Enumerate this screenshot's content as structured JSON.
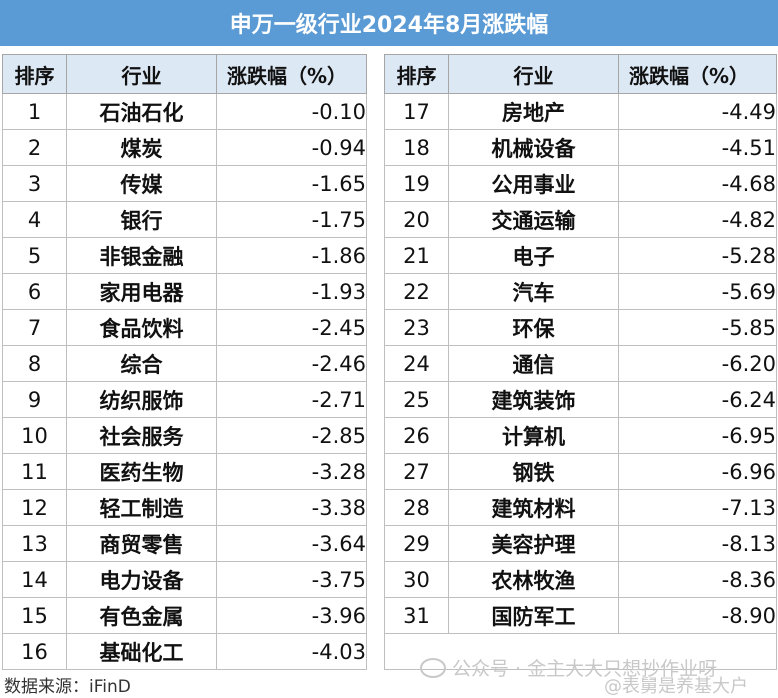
{
  "title": "申万一级行业2024年8月涨跌幅",
  "headers": {
    "rank": "排序",
    "industry": "行业",
    "change": "涨跌幅（%）"
  },
  "left_rows": [
    {
      "rank": "1",
      "industry": "石油石化",
      "change": "-0.10"
    },
    {
      "rank": "2",
      "industry": "煤炭",
      "change": "-0.94"
    },
    {
      "rank": "3",
      "industry": "传媒",
      "change": "-1.65"
    },
    {
      "rank": "4",
      "industry": "银行",
      "change": "-1.75"
    },
    {
      "rank": "5",
      "industry": "非银金融",
      "change": "-1.86"
    },
    {
      "rank": "6",
      "industry": "家用电器",
      "change": "-1.93"
    },
    {
      "rank": "7",
      "industry": "食品饮料",
      "change": "-2.45"
    },
    {
      "rank": "8",
      "industry": "综合",
      "change": "-2.46"
    },
    {
      "rank": "9",
      "industry": "纺织服饰",
      "change": "-2.71"
    },
    {
      "rank": "10",
      "industry": "社会服务",
      "change": "-2.85"
    },
    {
      "rank": "11",
      "industry": "医药生物",
      "change": "-3.28"
    },
    {
      "rank": "12",
      "industry": "轻工制造",
      "change": "-3.38"
    },
    {
      "rank": "13",
      "industry": "商贸零售",
      "change": "-3.64"
    },
    {
      "rank": "14",
      "industry": "电力设备",
      "change": "-3.75"
    },
    {
      "rank": "15",
      "industry": "有色金属",
      "change": "-3.96"
    },
    {
      "rank": "16",
      "industry": "基础化工",
      "change": "-4.03"
    }
  ],
  "right_rows": [
    {
      "rank": "17",
      "industry": "房地产",
      "change": "-4.49"
    },
    {
      "rank": "18",
      "industry": "机械设备",
      "change": "-4.51"
    },
    {
      "rank": "19",
      "industry": "公用事业",
      "change": "-4.68"
    },
    {
      "rank": "20",
      "industry": "交通运输",
      "change": "-4.82"
    },
    {
      "rank": "21",
      "industry": "电子",
      "change": "-5.28"
    },
    {
      "rank": "22",
      "industry": "汽车",
      "change": "-5.69"
    },
    {
      "rank": "23",
      "industry": "环保",
      "change": "-5.85"
    },
    {
      "rank": "24",
      "industry": "通信",
      "change": "-6.20"
    },
    {
      "rank": "25",
      "industry": "建筑装饰",
      "change": "-6.24"
    },
    {
      "rank": "26",
      "industry": "计算机",
      "change": "-6.95"
    },
    {
      "rank": "27",
      "industry": "钢铁",
      "change": "-6.96"
    },
    {
      "rank": "28",
      "industry": "建筑材料",
      "change": "-7.13"
    },
    {
      "rank": "29",
      "industry": "美容护理",
      "change": "-8.13"
    },
    {
      "rank": "30",
      "industry": "农林牧渔",
      "change": "-8.36"
    },
    {
      "rank": "31",
      "industry": "国防军工",
      "change": "-8.90"
    }
  ],
  "source": "数据来源：iFinD",
  "watermark": "公众号 · 金主大大只想抄作业呀",
  "watermark2": "@表舅是养基大户",
  "colors": {
    "header_bg": "#5b9bd5",
    "column_header_bg": "#dde8f5"
  }
}
